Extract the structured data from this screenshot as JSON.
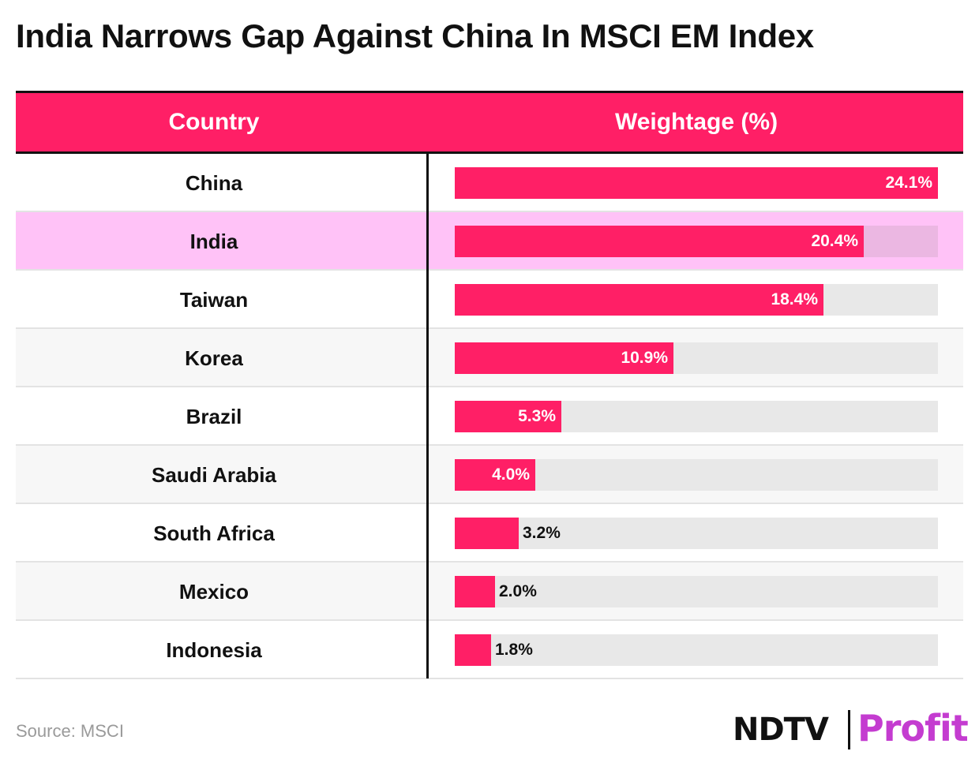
{
  "title": "India Narrows Gap Against China In MSCI EM Index",
  "header": {
    "country": "Country",
    "weight": "Weightage (%)"
  },
  "chart_data": {
    "type": "bar",
    "orientation": "horizontal",
    "title": "India Narrows Gap Against China In MSCI EM Index",
    "xlabel": "Weightage (%)",
    "ylabel": "Country",
    "categories": [
      "China",
      "India",
      "Taiwan",
      "Korea",
      "Brazil",
      "Saudi Arabia",
      "South Africa",
      "Mexico",
      "Indonesia"
    ],
    "values": [
      24.1,
      20.4,
      18.4,
      10.9,
      5.3,
      4.0,
      3.2,
      2.0,
      1.8
    ],
    "labels": [
      "24.1%",
      "20.4%",
      "18.4%",
      "10.9%",
      "5.3%",
      "4.0%",
      "3.2%",
      "2.0%",
      "1.8%"
    ],
    "xlim": [
      0,
      24.1
    ],
    "highlight": "India"
  },
  "colors": {
    "bar": "#ff1f66",
    "highlight_row": "#ffc2f7",
    "track": "#e8e8e8"
  },
  "source": "Source: MSCI",
  "logo": {
    "left": "NDTV",
    "right": "Profit"
  }
}
